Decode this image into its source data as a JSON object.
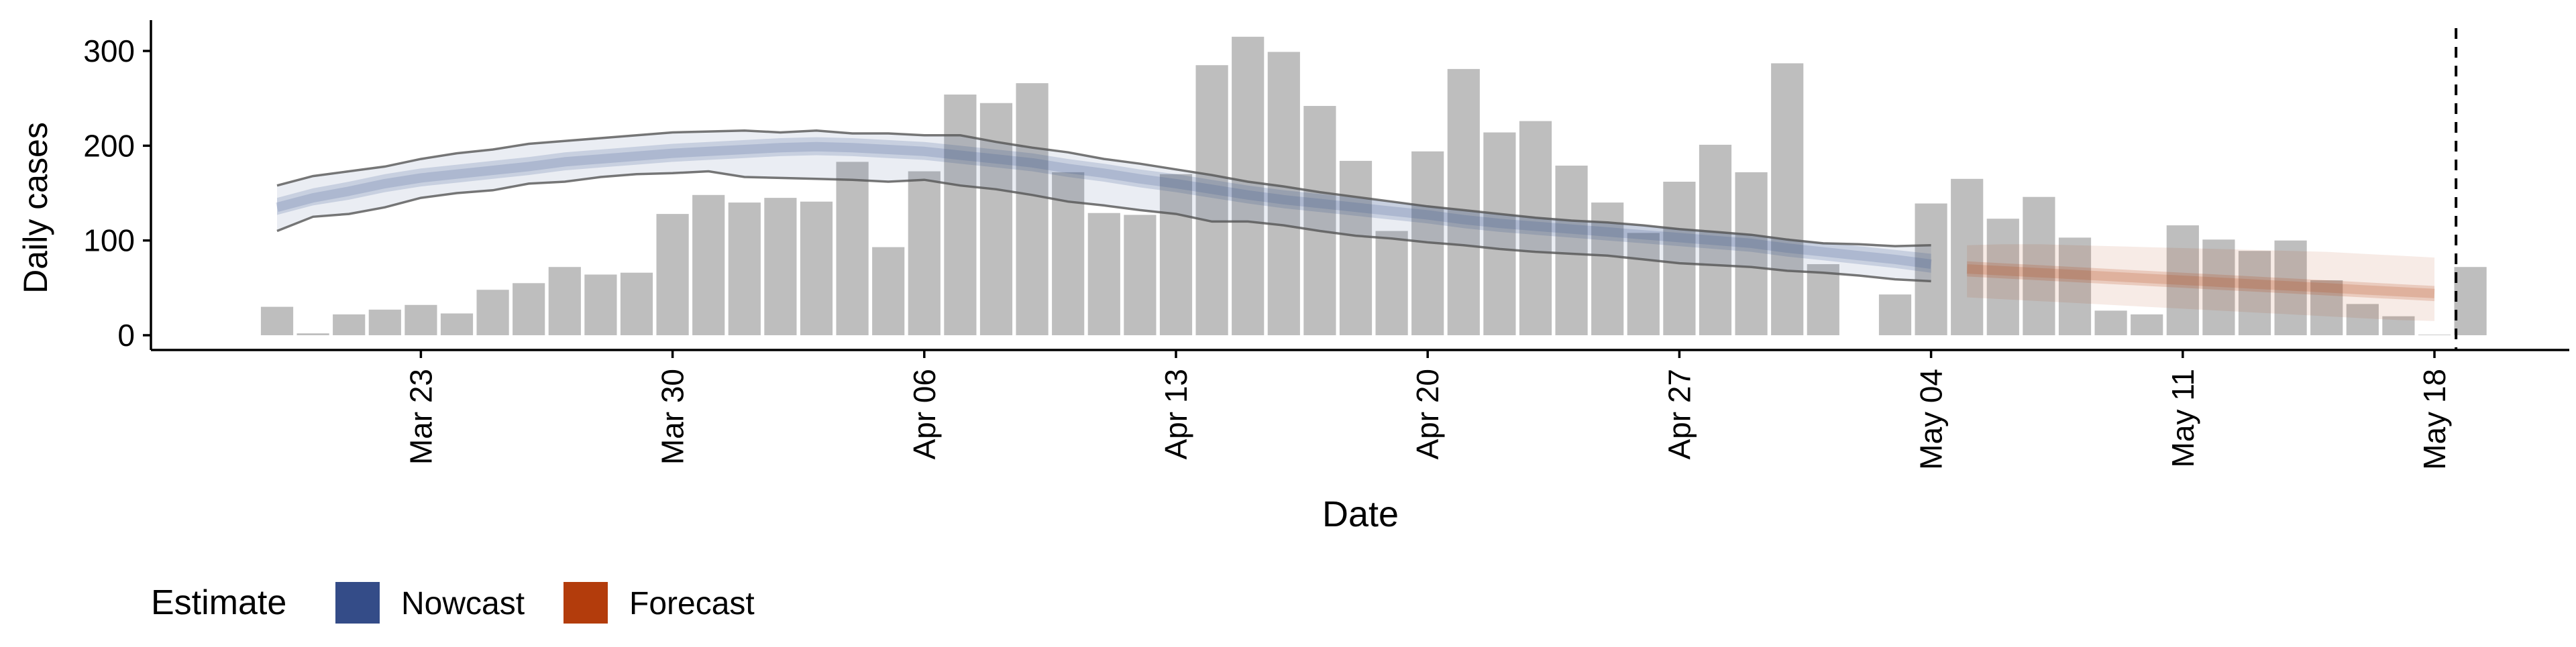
{
  "chart_data": {
    "type": "bar",
    "title": "",
    "xlabel": "Date",
    "ylabel": "Daily cases",
    "ylim": [
      0,
      330
    ],
    "yticks": [
      0,
      100,
      200,
      300
    ],
    "xticks": [
      {
        "day": 4,
        "label": "Mar 23"
      },
      {
        "day": 11,
        "label": "Mar 30"
      },
      {
        "day": 18,
        "label": "Apr 06"
      },
      {
        "day": 25,
        "label": "Apr 13"
      },
      {
        "day": 32,
        "label": "Apr 20"
      },
      {
        "day": 39,
        "label": "Apr 27"
      },
      {
        "day": 46,
        "label": "May 04"
      },
      {
        "day": 53,
        "label": "May 11"
      },
      {
        "day": 60,
        "label": "May 18"
      }
    ],
    "bar_color": "#bebebe",
    "x_start_date": "Mar 19",
    "bars": {
      "day": [
        0,
        1,
        2,
        3,
        4,
        5,
        6,
        7,
        8,
        9,
        10,
        11,
        12,
        13,
        14,
        15,
        16,
        17,
        18,
        19,
        20,
        21,
        22,
        23,
        24,
        25,
        26,
        27,
        28,
        29,
        30,
        31,
        32,
        33,
        34,
        35,
        36,
        37,
        38,
        39,
        40,
        41,
        42,
        43,
        45,
        46,
        47,
        48,
        49,
        50,
        51,
        52,
        53,
        54,
        55,
        56,
        57,
        58,
        59,
        60,
        61
      ],
      "values": [
        30,
        2,
        22,
        27,
        32,
        23,
        48,
        55,
        72,
        64,
        66,
        128,
        148,
        140,
        145,
        141,
        183,
        93,
        173,
        254,
        245,
        266,
        172,
        129,
        127,
        170,
        285,
        315,
        299,
        242,
        184,
        110,
        194,
        281,
        214,
        226,
        179,
        140,
        108,
        162,
        201,
        172,
        287,
        75,
        43,
        139,
        165,
        123,
        146,
        103,
        26,
        22,
        116,
        101,
        89,
        100,
        58,
        33,
        20,
        0,
        72
      ]
    },
    "vline_day": 60.6,
    "series": [
      {
        "name": "Nowcast",
        "color": "#344c88",
        "day_start": 0,
        "median": [
          135,
          145,
          152,
          160,
          166,
          170,
          174,
          178,
          183,
          186,
          189,
          192,
          194,
          196,
          198,
          199,
          198,
          196,
          194,
          190,
          186,
          182,
          176,
          171,
          165,
          160,
          154,
          148,
          143,
          139,
          135,
          131,
          127,
          122,
          118,
          115,
          112,
          109,
          106,
          103,
          100,
          97,
          92,
          88,
          84,
          80,
          75
        ],
        "lower50": [
          127,
          137,
          143,
          151,
          157,
          161,
          165,
          169,
          174,
          177,
          180,
          183,
          185,
          187,
          189,
          190,
          189,
          187,
          185,
          181,
          177,
          173,
          167,
          162,
          156,
          151,
          145,
          139,
          134,
          130,
          126,
          122,
          118,
          113,
          109,
          106,
          103,
          100,
          97,
          94,
          91,
          88,
          83,
          79,
          75,
          71,
          66
        ],
        "upper50": [
          145,
          155,
          162,
          170,
          176,
          180,
          184,
          188,
          193,
          196,
          199,
          202,
          204,
          206,
          208,
          209,
          208,
          206,
          204,
          200,
          196,
          192,
          186,
          181,
          175,
          170,
          164,
          158,
          153,
          149,
          145,
          141,
          137,
          132,
          128,
          125,
          122,
          119,
          116,
          113,
          110,
          107,
          102,
          98,
          94,
          90,
          86
        ],
        "lower90": [
          110,
          125,
          128,
          135,
          145,
          150,
          153,
          160,
          162,
          167,
          170,
          171,
          173,
          167,
          166,
          165,
          164,
          162,
          164,
          158,
          154,
          148,
          141,
          137,
          132,
          128,
          120,
          120,
          116,
          110,
          105,
          102,
          98,
          95,
          91,
          88,
          86,
          84,
          80,
          76,
          74,
          72,
          68,
          66,
          63,
          59,
          57
        ],
        "upper90": [
          158,
          168,
          173,
          178,
          186,
          192,
          196,
          202,
          205,
          208,
          211,
          214,
          215,
          216,
          214,
          216,
          213,
          213,
          211,
          211,
          204,
          198,
          193,
          186,
          181,
          175,
          169,
          162,
          157,
          151,
          146,
          141,
          136,
          132,
          128,
          124,
          121,
          119,
          116,
          112,
          109,
          106,
          101,
          97,
          96,
          94,
          95
        ]
      },
      {
        "name": "Forecast",
        "color": "#b33c0c",
        "day_start": 47,
        "median": [
          70,
          68,
          66,
          64,
          62,
          60,
          58,
          56,
          54,
          52,
          50,
          48,
          46,
          44
        ],
        "lower50": [
          62,
          60,
          58,
          56,
          54,
          52,
          50,
          48,
          46,
          44,
          42,
          40,
          38,
          36
        ],
        "upper50": [
          78,
          76,
          74,
          72,
          70,
          68,
          66,
          64,
          62,
          60,
          58,
          56,
          54,
          52
        ],
        "lower90": [
          40,
          38,
          36,
          34,
          32,
          30,
          28,
          26,
          24,
          22,
          20,
          18,
          16,
          15
        ],
        "upper90": [
          95,
          96,
          96,
          95,
          94,
          93,
          92,
          91,
          90,
          89,
          88,
          86,
          84,
          82
        ]
      }
    ],
    "legend": {
      "position": "bottom-left",
      "title": "Estimate",
      "items": [
        "Nowcast",
        "Forecast"
      ]
    }
  }
}
